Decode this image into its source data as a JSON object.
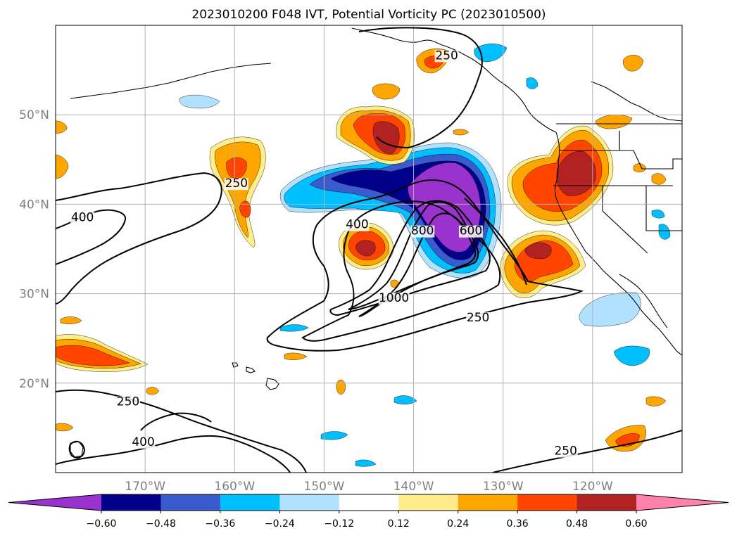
{
  "title": "2023010200 F048 IVT, Potential Vorticity PC (2023010500)",
  "colors": {
    "lt_-0.60": "#9a32cd",
    "-0.60_-0.48": "#00008b",
    "-0.48_-0.36": "#3a5bcd",
    "-0.36_-0.24": "#00bfff",
    "-0.24_-0.12": "#b0e2ff",
    "-0.12_0.12": "#ffffff",
    "0.12_0.24": "#ffec8b",
    "0.24_0.36": "#ffa500",
    "0.36_0.48": "#ff4500",
    "0.48_0.60": "#b22222",
    "gt_0.60": "#ff82ab"
  },
  "chart_data": {
    "type": "heatmap",
    "title": "2023010200 F048 IVT, Potential Vorticity PC (2023010500)",
    "projection": "cylindrical",
    "extent": {
      "lon_min": -180,
      "lon_max": -110,
      "lat_min": 10,
      "lat_max": 60
    },
    "x_ticks": [
      "170°W",
      "160°W",
      "150°W",
      "140°W",
      "130°W",
      "120°W"
    ],
    "x_tick_values": [
      -170,
      -160,
      -150,
      -140,
      -130,
      -120
    ],
    "y_ticks": [
      "20°N",
      "30°N",
      "40°N",
      "50°N"
    ],
    "y_tick_values": [
      20,
      30,
      40,
      50
    ],
    "grid": true,
    "filled_field": "Potential Vorticity PC",
    "colorbar": {
      "orientation": "horizontal",
      "extend": "both",
      "levels": [
        -0.6,
        -0.48,
        -0.36,
        -0.24,
        -0.12,
        0.12,
        0.24,
        0.36,
        0.48,
        0.6
      ],
      "tick_labels": [
        "−0.60",
        "−0.48",
        "−0.36",
        "−0.24",
        "−0.12",
        "0.12",
        "0.24",
        "0.36",
        "0.48",
        "0.60"
      ]
    },
    "contour_field": "IVT",
    "contour_levels": [
      250,
      400,
      600,
      800,
      1000
    ],
    "contour_labels": [
      {
        "text": "250",
        "lon": -159.8,
        "lat": 41.9
      },
      {
        "text": "400",
        "lon": -177,
        "lat": 38.1
      },
      {
        "text": "400",
        "lon": -146.3,
        "lat": 37.3
      },
      {
        "text": "250",
        "lon": -136.3,
        "lat": 56.2
      },
      {
        "text": "800",
        "lon": -139.0,
        "lat": 36.6
      },
      {
        "text": "600",
        "lon": -133.6,
        "lat": 36.6
      },
      {
        "text": "1000",
        "lon": -142.2,
        "lat": 29.1
      },
      {
        "text": "250",
        "lon": -132.8,
        "lat": 26.9
      },
      {
        "text": "250",
        "lon": -171.9,
        "lat": 17.5
      },
      {
        "text": "400",
        "lon": -170.2,
        "lat": 13.0
      },
      {
        "text": "250",
        "lon": -123.0,
        "lat": 12.0
      }
    ]
  }
}
